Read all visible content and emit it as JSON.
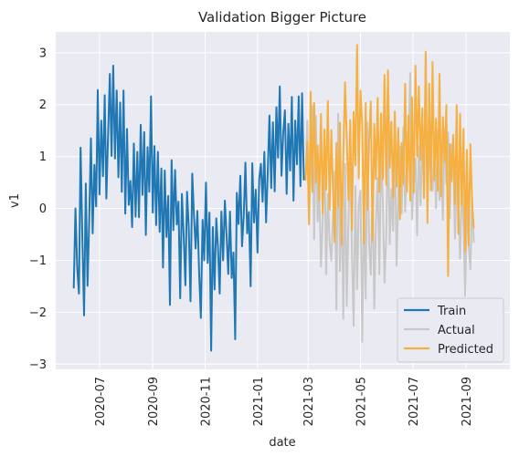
{
  "chart_data": {
    "type": "line",
    "title": "Validation Bigger Picture",
    "xlabel": "date",
    "ylabel": "v1",
    "xlim": [
      "2020-05-11",
      "2021-10-22"
    ],
    "ylim": [
      -3.1,
      3.4
    ],
    "x_ticks": [
      "2020-07",
      "2020-09",
      "2020-11",
      "2021-01",
      "2021-03",
      "2021-05",
      "2021-07",
      "2021-09"
    ],
    "y_ticks": [
      -3,
      -2,
      -1,
      0,
      1,
      2,
      3
    ],
    "y_tick_labels": [
      "−3",
      "−2",
      "−1",
      "0",
      "1",
      "2",
      "3"
    ],
    "grid": true,
    "legend": "lower-right",
    "series": [
      {
        "name": "Train",
        "color": "#1f77b4",
        "x_start": "2020-06-01",
        "step_days": 2,
        "values": [
          -1.54,
          0.0,
          -1.15,
          -1.64,
          1.17,
          -0.55,
          -2.06,
          0.48,
          -1.49,
          -0.26,
          1.35,
          -0.48,
          0.84,
          0.04,
          2.28,
          0.27,
          1.69,
          0.62,
          2.18,
          0.19,
          1.41,
          2.59,
          1.01,
          2.75,
          0.96,
          2.27,
          0.6,
          2.04,
          0.32,
          2.27,
          -0.1,
          1.53,
          0.07,
          0.53,
          -0.36,
          1.25,
          -0.16,
          1.09,
          -0.17,
          1.61,
          0.26,
          1.47,
          -0.51,
          1.18,
          0.32,
          2.16,
          -0.08,
          1.2,
          -0.32,
          1.09,
          -0.45,
          0.77,
          -1.14,
          0.73,
          -0.55,
          0.24,
          -1.86,
          0.93,
          -0.42,
          0.74,
          -0.31,
          0.13,
          -1.73,
          0.28,
          -0.52,
          -1.48,
          0.32,
          -0.38,
          -1.79,
          0.67,
          -0.15,
          -0.77,
          -0.05,
          -1.22,
          -2.11,
          -0.22,
          -1.0,
          0.5,
          -1.05,
          -0.08,
          -2.74,
          -0.36,
          -1.56,
          -0.19,
          -0.77,
          -1.64,
          -0.06,
          -1.0,
          0.15,
          -0.53,
          -1.26,
          -0.06,
          -1.34,
          -0.85,
          -2.52,
          0.3,
          -0.3,
          0.63,
          -0.73,
          -0.12,
          0.88,
          -0.48,
          -0.07,
          -1.5,
          0.87,
          -0.27,
          0.36,
          -0.85,
          0.57,
          0.86,
          0.13,
          1.09,
          -0.27,
          0.74,
          1.79,
          0.39,
          1.66,
          0.33,
          1.95,
          0.98,
          2.35,
          0.63,
          1.47,
          1.89,
          0.28,
          1.63,
          0.73,
          2.15,
          0.15,
          1.69,
          0.85,
          2.16,
          0.43,
          2.22,
          0.54
        ]
      },
      {
        "name": "Actual",
        "color": "#c8c8c8",
        "x_start": "2021-02-26",
        "step_days": 2,
        "values": [
          0.54,
          1.69,
          -0.29,
          0.9,
          1.97,
          -0.59,
          1.78,
          -0.25,
          0.37,
          -1.12,
          -0.24,
          1.18,
          -1.27,
          0.28,
          -0.64,
          -1.01,
          -0.15,
          0.71,
          -1.95,
          1.82,
          -1.21,
          0.47,
          -2.13,
          0.86,
          -1.88,
          -0.17,
          1.13,
          -0.78,
          -2.26,
          0.43,
          -1.56,
          0.09,
          0.34,
          -2.57,
          0.12,
          -1.74,
          1.65,
          -0.69,
          -1.28,
          0.54,
          -1.93,
          -0.27,
          0.58,
          -1.27,
          1.15,
          0.09,
          -1.43,
          -0.54,
          1.52,
          -0.69,
          0.37,
          -0.43,
          1.4,
          -1.1,
          0.27,
          1.19,
          -0.1,
          1.57,
          -0.06,
          0.86,
          1.24,
          2.61,
          -0.21,
          0.71,
          0.96,
          -0.52,
          1.2,
          0.06,
          1.45,
          0.32,
          2.89,
          0.08,
          1.28,
          0.63,
          0.34,
          1.26,
          0.0,
          1.5,
          0.16,
          0.96,
          -0.22,
          1.55,
          0.47,
          1.46,
          -0.19,
          1.23,
          1.04,
          -0.58,
          0.7,
          0.18,
          -0.97,
          0.49,
          -0.36,
          -1.69,
          0.16,
          -0.7,
          -1.17,
          0.22,
          -0.66
        ]
      },
      {
        "name": "Predicted",
        "color": "#f5b041",
        "x_start": "2021-02-26",
        "step_days": 2,
        "values": [
          0.54,
          1.29,
          -0.31,
          2.25,
          0.32,
          2.03,
          0.5,
          1.21,
          0.15,
          1.82,
          -0.1,
          1.52,
          0.36,
          2.07,
          -0.02,
          1.51,
          0.32,
          -0.65,
          1.26,
          0.04,
          1.65,
          -0.7,
          1.01,
          2.43,
          1.35,
          0.16,
          1.7,
          -0.42,
          1.86,
          0.83,
          3.15,
          0.58,
          2.27,
          1.62,
          -0.68,
          2.03,
          -0.02,
          1.28,
          2.06,
          -0.63,
          1.63,
          0.57,
          2.13,
          0.32,
          1.83,
          0.56,
          2.57,
          0.45,
          2.66,
          0.78,
          1.67,
          0.21,
          1.87,
          0.42,
          1.55,
          -0.21,
          1.26,
          0.47,
          2.4,
          0.32,
          1.79,
          0.15,
          2.14,
          0.3,
          2.75,
          1.0,
          2.35,
          0.93,
          1.93,
          0.2,
          3.02,
          -0.28,
          2.4,
          0.35,
          2.82,
          0.54,
          1.73,
          0.34,
          2.59,
          0.24,
          1.76,
          0.9,
          1.99,
          -1.3,
          1.24,
          0.52,
          1.42,
          0.08,
          1.99,
          -0.49,
          1.82,
          0.06,
          1.53,
          -0.83,
          1.13,
          -0.71,
          1.24,
          0.1,
          -0.38
        ]
      }
    ]
  }
}
